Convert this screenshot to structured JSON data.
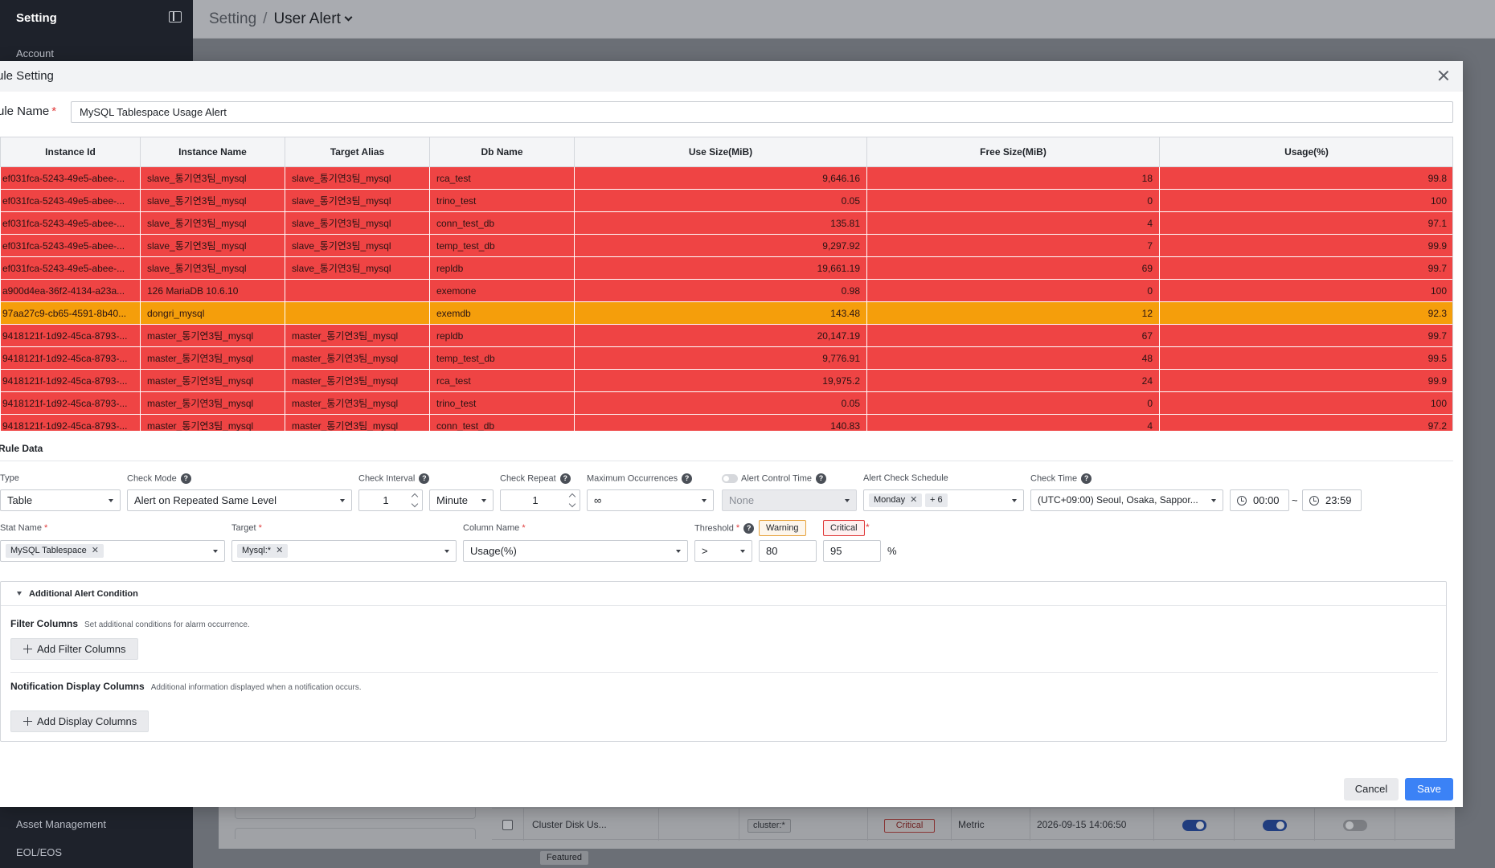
{
  "sidebar": {
    "title": "Setting",
    "items": [
      "Account",
      "Asset Management",
      "EOL/EOS"
    ]
  },
  "breadcrumb": {
    "root": "Setting",
    "separator": "/",
    "current": "User Alert"
  },
  "background_row": {
    "name": "Cluster Disk Us...",
    "chip": "Featured",
    "target": "cluster:*",
    "level": "Critical",
    "type": "Metric",
    "date": "2026-09-15 14:06:50",
    "toggles": [
      true,
      true,
      false
    ]
  },
  "modal": {
    "title": "ule Setting",
    "rule_name_label": "ule Name",
    "required_mark": "*",
    "rule_name_value": "MySQL Tablespace Usage Alert",
    "table": {
      "columns": [
        "Instance Id",
        "Instance Name",
        "Target Alias",
        "Db Name",
        "Use Size(MiB)",
        "Free Size(MiB)",
        "Usage(%)"
      ],
      "rows": [
        {
          "level": "crit",
          "cells": [
            "ef031fca-5243-49e5-abee-...",
            "slave_통기연3팀_mysql",
            "slave_통기연3팀_mysql",
            "rca_test",
            "9,646.16",
            "18",
            "99.8"
          ]
        },
        {
          "level": "crit",
          "cells": [
            "ef031fca-5243-49e5-abee-...",
            "slave_통기연3팀_mysql",
            "slave_통기연3팀_mysql",
            "trino_test",
            "0.05",
            "0",
            "100"
          ]
        },
        {
          "level": "crit",
          "cells": [
            "ef031fca-5243-49e5-abee-...",
            "slave_통기연3팀_mysql",
            "slave_통기연3팀_mysql",
            "conn_test_db",
            "135.81",
            "4",
            "97.1"
          ]
        },
        {
          "level": "crit",
          "cells": [
            "ef031fca-5243-49e5-abee-...",
            "slave_통기연3팀_mysql",
            "slave_통기연3팀_mysql",
            "temp_test_db",
            "9,297.92",
            "7",
            "99.9"
          ]
        },
        {
          "level": "crit",
          "cells": [
            "ef031fca-5243-49e5-abee-...",
            "slave_통기연3팀_mysql",
            "slave_통기연3팀_mysql",
            "repldb",
            "19,661.19",
            "69",
            "99.7"
          ]
        },
        {
          "level": "crit",
          "cells": [
            "a900d4ea-36f2-4134-a23a...",
            "126 MariaDB 10.6.10",
            "",
            "exemone",
            "0.98",
            "0",
            "100"
          ]
        },
        {
          "level": "warn",
          "cells": [
            "97aa27c9-cb65-4591-8b40...",
            "dongri_mysql",
            "",
            "exemdb",
            "143.48",
            "12",
            "92.3"
          ]
        },
        {
          "level": "crit",
          "cells": [
            "9418121f-1d92-45ca-8793-...",
            "master_통기연3팀_mysql",
            "master_통기연3팀_mysql",
            "repldb",
            "20,147.19",
            "67",
            "99.7"
          ]
        },
        {
          "level": "crit",
          "cells": [
            "9418121f-1d92-45ca-8793-...",
            "master_통기연3팀_mysql",
            "master_통기연3팀_mysql",
            "temp_test_db",
            "9,776.91",
            "48",
            "99.5"
          ]
        },
        {
          "level": "crit",
          "cells": [
            "9418121f-1d92-45ca-8793-...",
            "master_통기연3팀_mysql",
            "master_통기연3팀_mysql",
            "rca_test",
            "19,975.2",
            "24",
            "99.9"
          ]
        },
        {
          "level": "crit",
          "cells": [
            "9418121f-1d92-45ca-8793-...",
            "master_통기연3팀_mysql",
            "master_통기연3팀_mysql",
            "trino_test",
            "0.05",
            "0",
            "100"
          ]
        },
        {
          "level": "crit",
          "cells": [
            "9418121f-1d92-45ca-8793-...",
            "master_통기연3팀_mysql",
            "master_통기연3팀_mysql",
            "conn_test_db",
            "140.83",
            "4",
            "97.2"
          ]
        }
      ]
    },
    "rule_data": {
      "title": "Rule Data",
      "type_label": "Type",
      "type_value": "Table",
      "check_mode_label": "Check Mode",
      "check_mode_value": "Alert on Repeated Same Level",
      "check_interval_label": "Check Interval",
      "check_interval_value": "1",
      "check_interval_unit": "Minute",
      "check_repeat_label": "Check Repeat",
      "check_repeat_value": "1",
      "max_occ_label": "Maximum Occurrences",
      "max_occ_value": "∞",
      "alert_control_label": "Alert Control Time",
      "alert_control_value": "None",
      "schedule_label": "Alert Check Schedule",
      "schedule_tag": "Monday",
      "schedule_more": "+ 6",
      "check_time_label": "Check Time",
      "check_time_zone": "(UTC+09:00) Seoul, Osaka, Sappor...",
      "time_from": "00:00",
      "time_sep": "~",
      "time_to": "23:59",
      "stat_name_label": "Stat Name",
      "stat_name_tag": "MySQL Tablespace",
      "target_label": "Target",
      "target_tag": "Mysql:*",
      "column_name_label": "Column Name",
      "column_name_value": "Usage(%)",
      "threshold_label": "Threshold",
      "operator": ">",
      "warning_label": "Warning",
      "critical_label": "Critical",
      "warning_value": "80",
      "critical_value": "95",
      "unit": "%"
    },
    "additional": {
      "title": "Additional Alert Condition",
      "filter_title": "Filter Columns",
      "filter_desc": "Set additional conditions for alarm occurrence.",
      "filter_button": "Add Filter Columns",
      "display_title": "Notification Display Columns",
      "display_desc": "Additional information displayed when a notification occurs.",
      "display_button": "Add Display Columns"
    },
    "buttons": {
      "cancel": "Cancel",
      "save": "Save"
    }
  }
}
